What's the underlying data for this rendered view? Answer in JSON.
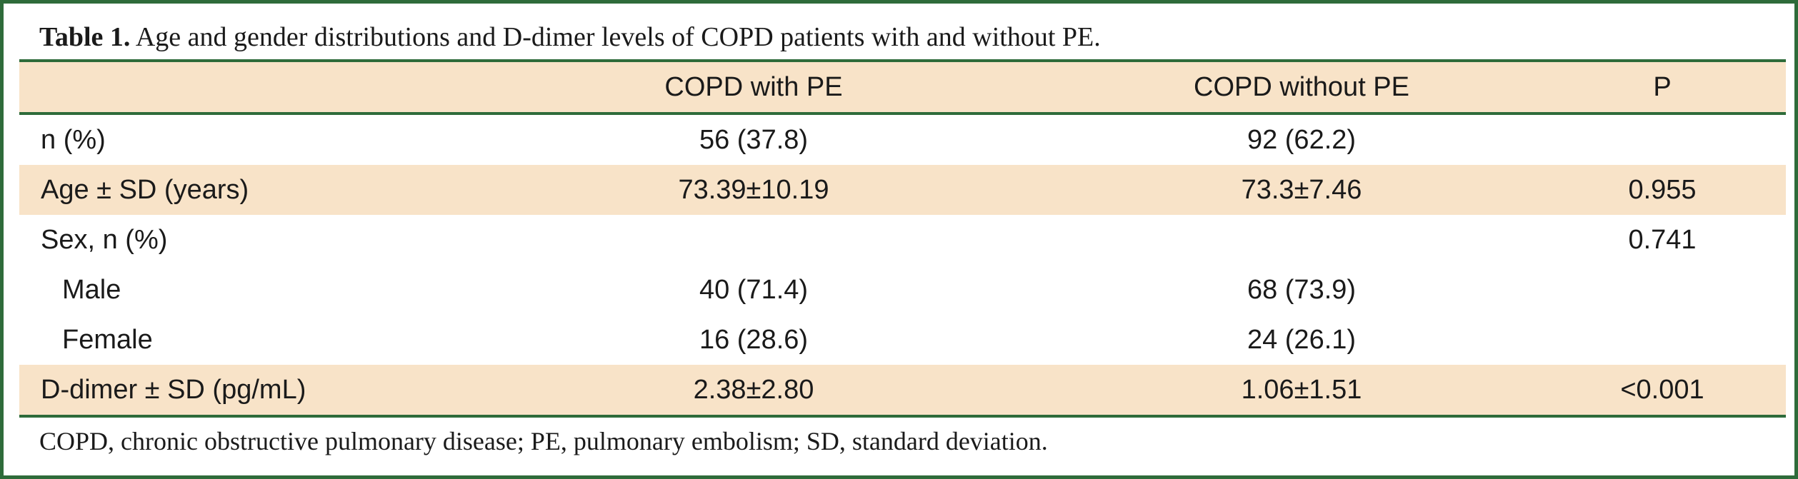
{
  "caption": {
    "label": "Table 1.",
    "text": " Age and gender distributions and D-dimer levels of COPD patients with and without PE."
  },
  "table": {
    "headers": [
      "",
      "COPD with PE",
      "COPD without PE",
      "P"
    ],
    "rows": [
      {
        "label": "n (%)",
        "with_pe": "56 (37.8)",
        "without_pe": "92 (62.2)",
        "p": ""
      },
      {
        "label": "Age ± SD (years)",
        "with_pe": "73.39±10.19",
        "without_pe": "73.3±7.46",
        "p": "0.955"
      },
      {
        "label": "Sex, n (%)",
        "with_pe": "",
        "without_pe": "",
        "p": "0.741"
      },
      {
        "label": "Male",
        "with_pe": "40 (71.4)",
        "without_pe": "68 (73.9)",
        "p": ""
      },
      {
        "label": "Female",
        "with_pe": "16 (28.6)",
        "without_pe": "24 (26.1)",
        "p": ""
      },
      {
        "label": "D-dimer ± SD (pg/mL)",
        "with_pe": "2.38±2.80",
        "without_pe": "1.06±1.51",
        "p": "<0.001"
      }
    ]
  },
  "footnote": "COPD, chronic obstructive pulmonary disease; PE, pulmonary embolism; SD, standard deviation.",
  "colors": {
    "border": "#2e6b3a",
    "row_shade": "#f8e3c8"
  }
}
